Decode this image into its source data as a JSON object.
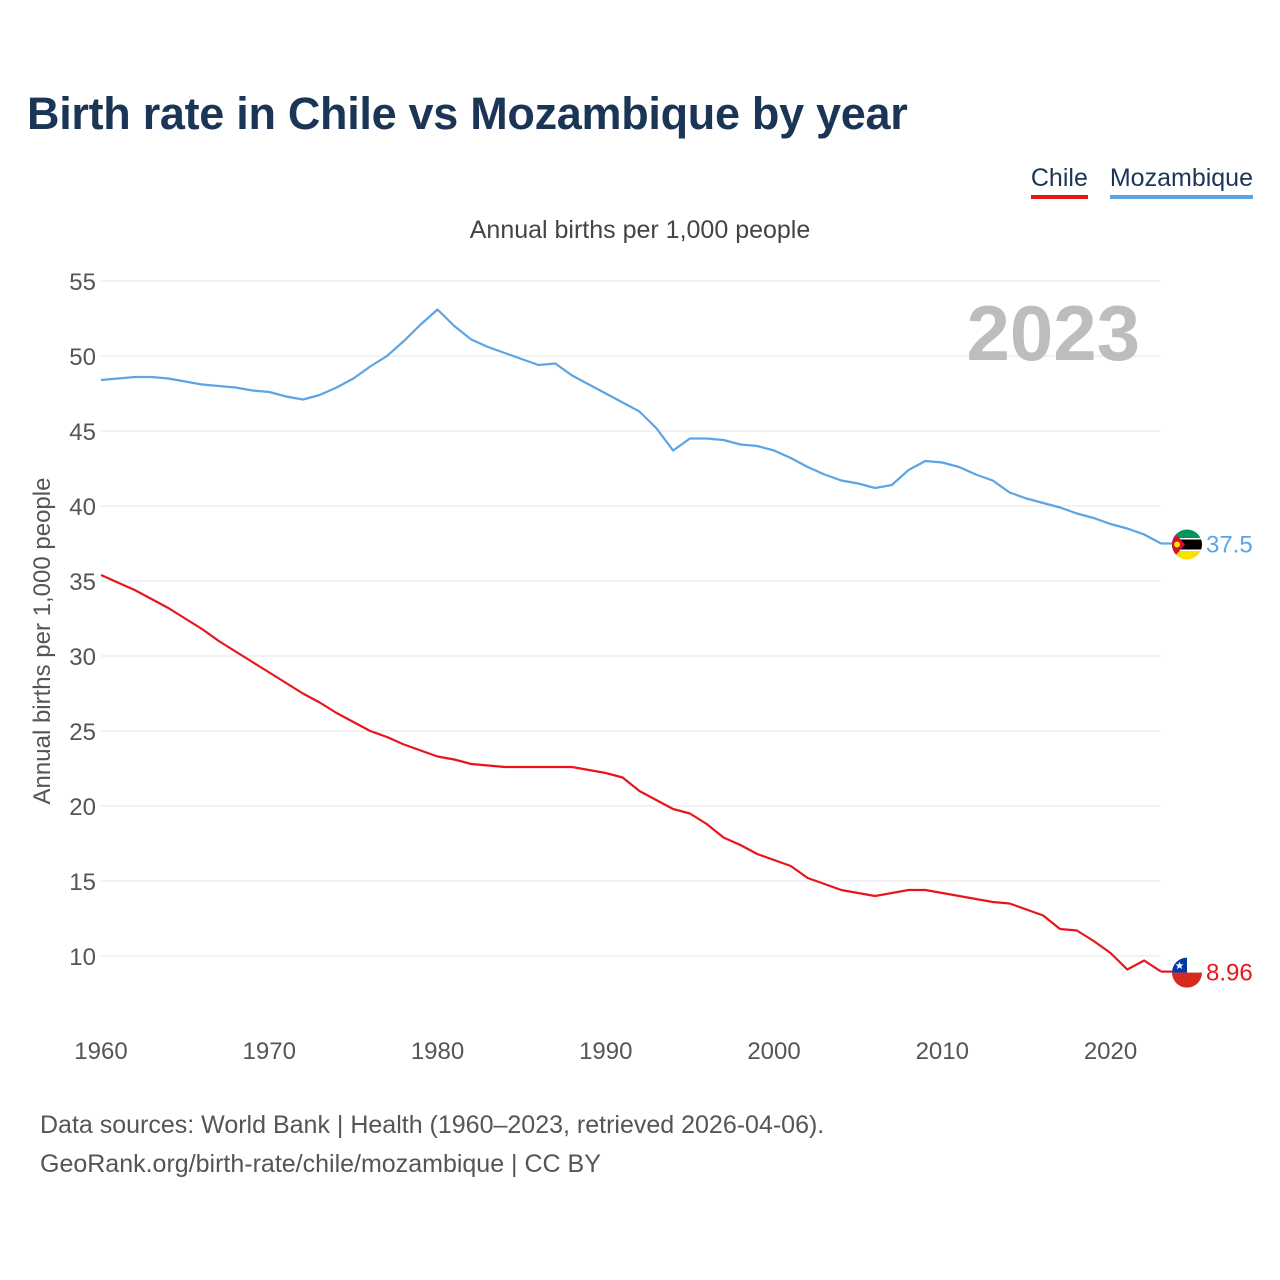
{
  "title": "Birth rate in Chile vs Mozambique by year",
  "legend": [
    {
      "label": "Chile",
      "color": "#e8151b"
    },
    {
      "label": "Mozambique",
      "color": "#5ba4e6"
    }
  ],
  "subtitle": "Annual births per 1,000 people",
  "footer": {
    "source": "Data sources: World Bank | Health (1960–2023, retrieved 2026-04-06).",
    "credit": "GeoRank.org/birth-rate/chile/mozambique | CC BY"
  },
  "chart_data": {
    "type": "line",
    "title": "Birth rate in Chile vs Mozambique by year",
    "xlabel": "",
    "ylabel": "Annual births per 1,000 people",
    "xlim": [
      1960,
      2023
    ],
    "ylim": [
      5,
      55
    ],
    "yticks": [
      "10",
      "15",
      "20",
      "25",
      "30",
      "35",
      "40",
      "45",
      "50",
      "55"
    ],
    "xticks": [
      "1960",
      "1970",
      "1980",
      "1990",
      "2000",
      "2010",
      "2020"
    ],
    "year_label": "2023",
    "grid": true,
    "legend_position": "top-right",
    "x": [
      1960,
      1961,
      1962,
      1963,
      1964,
      1965,
      1966,
      1967,
      1968,
      1969,
      1970,
      1971,
      1972,
      1973,
      1974,
      1975,
      1976,
      1977,
      1978,
      1979,
      1980,
      1981,
      1982,
      1983,
      1984,
      1985,
      1986,
      1987,
      1988,
      1989,
      1990,
      1991,
      1992,
      1993,
      1994,
      1995,
      1996,
      1997,
      1998,
      1999,
      2000,
      2001,
      2002,
      2003,
      2004,
      2005,
      2006,
      2007,
      2008,
      2009,
      2010,
      2011,
      2012,
      2013,
      2014,
      2015,
      2016,
      2017,
      2018,
      2019,
      2020,
      2021,
      2022,
      2023
    ],
    "series": [
      {
        "name": "Chile",
        "color": "#e8151b",
        "end_label": "8.96",
        "flag": "chile",
        "values": [
          35.4,
          34.9,
          34.4,
          33.8,
          33.2,
          32.5,
          31.8,
          31.0,
          30.3,
          29.6,
          28.9,
          28.2,
          27.5,
          26.9,
          26.2,
          25.6,
          25.0,
          24.6,
          24.1,
          23.7,
          23.3,
          23.1,
          22.8,
          22.7,
          22.6,
          22.6,
          22.6,
          22.6,
          22.6,
          22.4,
          22.2,
          21.9,
          21.0,
          20.4,
          19.8,
          19.5,
          18.8,
          17.9,
          17.4,
          16.8,
          16.4,
          16.0,
          15.2,
          14.8,
          14.4,
          14.2,
          14.0,
          14.2,
          14.4,
          14.4,
          14.2,
          14.0,
          13.8,
          13.6,
          13.5,
          13.1,
          12.7,
          11.8,
          11.7,
          11.0,
          10.2,
          9.1,
          9.7,
          8.96
        ]
      },
      {
        "name": "Mozambique",
        "color": "#5ba4e6",
        "end_label": "37.5",
        "flag": "mozambique",
        "values": [
          48.4,
          48.5,
          48.6,
          48.6,
          48.5,
          48.3,
          48.1,
          48.0,
          47.9,
          47.7,
          47.6,
          47.3,
          47.1,
          47.4,
          47.9,
          48.5,
          49.3,
          50.0,
          51.0,
          52.1,
          53.1,
          52.0,
          51.1,
          50.6,
          50.2,
          49.8,
          49.4,
          49.5,
          48.7,
          48.1,
          47.5,
          46.9,
          46.3,
          45.2,
          43.7,
          44.5,
          44.5,
          44.4,
          44.1,
          44.0,
          43.7,
          43.2,
          42.6,
          42.1,
          41.7,
          41.5,
          41.2,
          41.4,
          42.4,
          43.0,
          42.9,
          42.6,
          42.1,
          41.7,
          40.9,
          40.5,
          40.2,
          39.9,
          39.5,
          39.2,
          38.8,
          38.5,
          38.1,
          37.5
        ]
      }
    ]
  }
}
